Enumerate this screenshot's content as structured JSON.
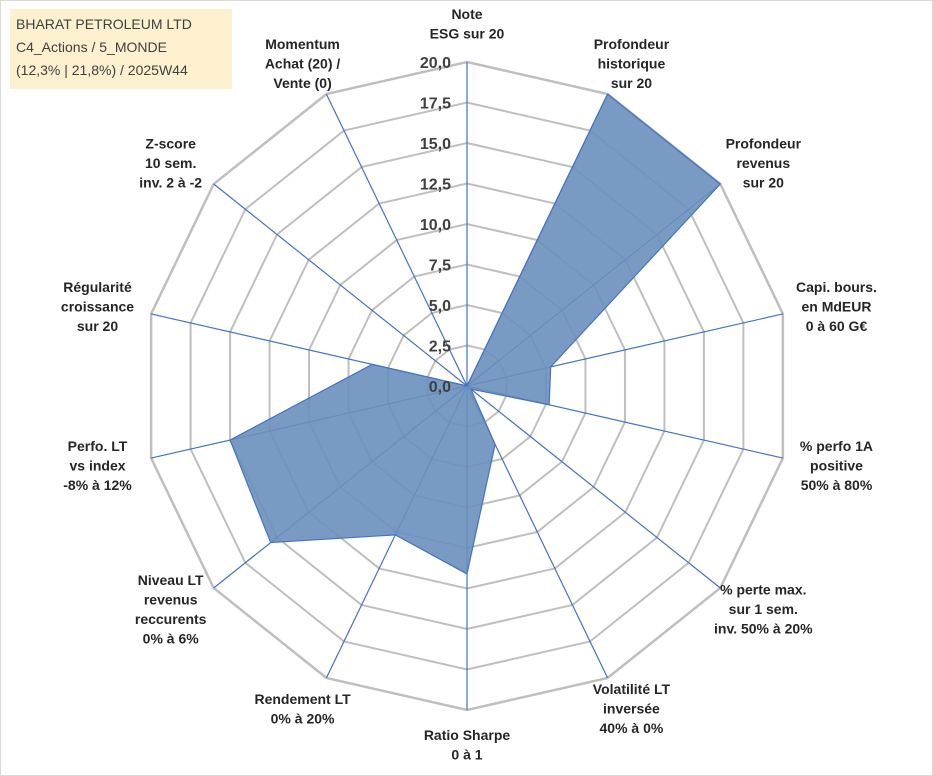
{
  "info_box": {
    "line1": "BHARAT PETROLEUM LTD",
    "line2": "C4_Actions / 5_MONDE",
    "line3": "(12,3% | 21,8%) / 2025W44"
  },
  "colors": {
    "fill": "#6a8fbd",
    "stroke": "#4472c4",
    "grid": "#bfbfbf",
    "spoke": "#4472c4"
  },
  "chart_data": {
    "type": "radar",
    "title": "",
    "rmin": 0,
    "rmax": 20,
    "tick_step": 2.5,
    "tick_labels": [
      "0,0",
      "2,5",
      "5,0",
      "7,5",
      "10,0",
      "12,5",
      "15,0",
      "17,5",
      "20,0"
    ],
    "axes": [
      {
        "label": [
          "Note",
          "ESG sur 20"
        ],
        "value": 0
      },
      {
        "label": [
          "Profondeur",
          "historique",
          "sur 20"
        ],
        "value": 20
      },
      {
        "label": [
          "Profondeur",
          "revenus",
          "sur 20"
        ],
        "value": 20
      },
      {
        "label": [
          "Capi. bours.",
          "en MdEUR",
          "0 à 60 G€"
        ],
        "value": 5.3
      },
      {
        "label": [
          "% perfo 1A",
          "positive",
          "50% à 80%"
        ],
        "value": 5.2
      },
      {
        "label": [
          "% perte max.",
          "sur 1 sem.",
          "inv. 50% à 20%"
        ],
        "value": 0.3
      },
      {
        "label": [
          "Volatilité LT",
          "inversée",
          "40% à 0%"
        ],
        "value": 4.0
      },
      {
        "label": [
          "Ratio Sharpe",
          "0 à 1"
        ],
        "value": 11.6
      },
      {
        "label": [
          "Rendement LT",
          "0% à 20%"
        ],
        "value": 10.2
      },
      {
        "label": [
          "Niveau LT",
          "revenus",
          "reccurents",
          "0% à 6%"
        ],
        "value": 15.5
      },
      {
        "label": [
          "Perfo. LT",
          "vs index",
          "-8% à 12%"
        ],
        "value": 15.0
      },
      {
        "label": [
          "Régularité",
          "croissance",
          "sur 20"
        ],
        "value": 6.0
      },
      {
        "label": [
          "Z-score",
          "10 sem.",
          "inv. 2 à -2"
        ],
        "value": 0
      },
      {
        "label": [
          "Momentum",
          "Achat (20) /",
          "Vente (0)"
        ],
        "value": 0
      }
    ]
  }
}
